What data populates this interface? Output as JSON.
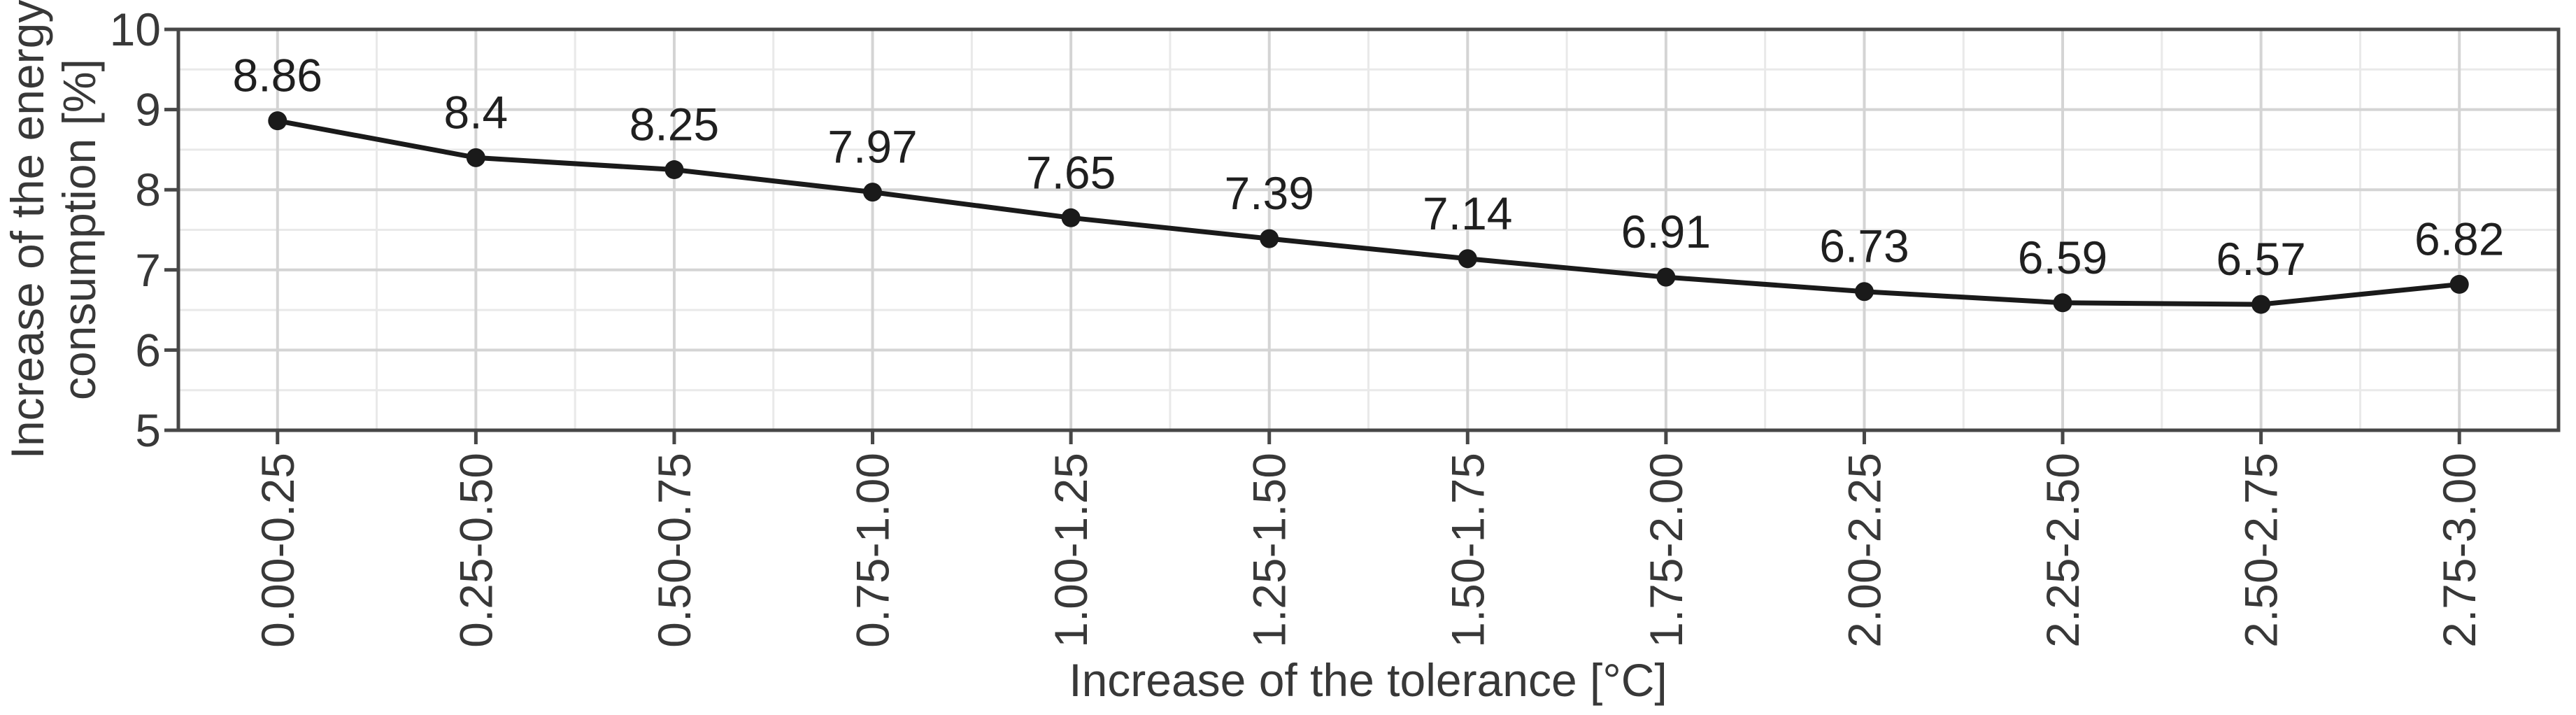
{
  "chart_data": {
    "type": "line",
    "title": "",
    "categories": [
      "0.00-0.25",
      "0.25-0.50",
      "0.50-0.75",
      "0.75-1.00",
      "1.00-1.25",
      "1.25-1.50",
      "1.50-1.75",
      "1.75-2.00",
      "2.00-2.25",
      "2.25-2.50",
      "2.50-2.75",
      "2.75-3.00"
    ],
    "values": [
      8.86,
      8.4,
      8.25,
      7.97,
      7.65,
      7.39,
      7.14,
      6.91,
      6.73,
      6.59,
      6.57,
      6.82
    ],
    "point_labels": [
      "8.86",
      "8.4",
      "8.25",
      "7.97",
      "7.65",
      "7.39",
      "7.14",
      "6.91",
      "6.73",
      "6.59",
      "6.57",
      "6.82"
    ],
    "xlabel": "Increase of the tolerance [°C]",
    "ylabel": "Increase of the energy consumption [%]",
    "ylabel_lines": [
      "Increase of the energy",
      "consumption [%]"
    ],
    "ylim": [
      5,
      10
    ],
    "yticks": [
      5,
      6,
      7,
      8,
      9,
      10
    ],
    "y_minor_step": 0.5,
    "grid": "major and minor gridlines on, light gray",
    "legend_position": "none",
    "marker": "filled-circle"
  },
  "style": {
    "background": "#ffffff",
    "panel_border": "#474747",
    "axis_text": "#383838",
    "data_label_color": "#1f1f1f",
    "line_color": "#1a1a1a",
    "point_color": "#1a1a1a",
    "grid_major": "#d4d4d4",
    "grid_minor": "#e9e9e9"
  }
}
